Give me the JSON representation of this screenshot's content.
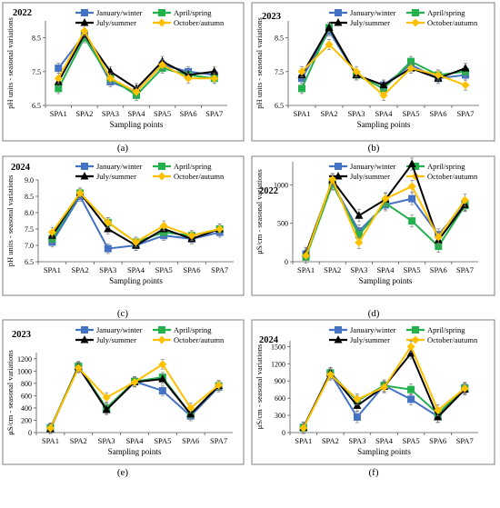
{
  "figure": {
    "x_label": "Sampling points",
    "legend": [
      "January/winter",
      "April/spring",
      "July/summer",
      "October/autumn"
    ]
  },
  "colors": {
    "January/winter": "#4472c4",
    "April/spring": "#22b14c",
    "July/summer": "#000000",
    "October/autumn": "#ffc000"
  },
  "panel_labels": [
    "(a)",
    "(b)",
    "(c)",
    "(d)",
    "(e)",
    "(f)"
  ],
  "chart_data": [
    {
      "type": "line",
      "year": "2022",
      "panel": "(a)",
      "ylabel": "pH units - seasonal variations",
      "xlabel": "Sampling points",
      "categories": [
        "SPA1",
        "SPA2",
        "SPA3",
        "SPA4",
        "SPA5",
        "SPA6",
        "SPA7"
      ],
      "ylim": [
        6.5,
        9.0
      ],
      "yticks": [
        "6.5",
        "7.5",
        "8.5"
      ],
      "yticks_values": [
        6.5,
        7.5,
        8.5
      ],
      "series": [
        {
          "name": "January/winter",
          "marker": "square",
          "values": [
            7.6,
            8.6,
            7.2,
            6.9,
            7.7,
            7.5,
            7.4
          ]
        },
        {
          "name": "April/spring",
          "marker": "square",
          "values": [
            7.0,
            8.5,
            7.3,
            6.8,
            7.6,
            7.4,
            7.3
          ]
        },
        {
          "name": "July/summer",
          "marker": "triangle",
          "values": [
            7.2,
            8.6,
            7.5,
            7.0,
            7.8,
            7.4,
            7.5
          ]
        },
        {
          "name": "October/autumn",
          "marker": "diamond",
          "values": [
            7.3,
            8.7,
            7.3,
            6.9,
            7.7,
            7.3,
            7.3
          ]
        }
      ]
    },
    {
      "type": "line",
      "year": "2023",
      "panel": "(b)",
      "ylabel": "pH units - seasonal variations",
      "xlabel": "Sampling points",
      "categories": [
        "SPA1",
        "SPA2",
        "SPA3",
        "SPA4",
        "SPA5",
        "SPA6",
        "SPA7"
      ],
      "ylim": [
        6.5,
        9.0
      ],
      "yticks": [
        "6.5",
        "7.5",
        "8.5"
      ],
      "yticks_values": [
        6.5,
        7.5,
        8.5
      ],
      "series": [
        {
          "name": "January/winter",
          "marker": "square",
          "values": [
            7.3,
            8.7,
            7.4,
            7.1,
            7.7,
            7.3,
            7.4
          ]
        },
        {
          "name": "April/spring",
          "marker": "square",
          "values": [
            7.0,
            8.8,
            7.4,
            7.0,
            7.8,
            7.4,
            7.5
          ]
        },
        {
          "name": "July/summer",
          "marker": "triangle",
          "values": [
            7.4,
            8.8,
            7.4,
            7.1,
            7.6,
            7.3,
            7.6
          ]
        },
        {
          "name": "October/autumn",
          "marker": "diamond",
          "values": [
            7.5,
            8.3,
            7.5,
            6.8,
            7.6,
            7.4,
            7.1
          ]
        }
      ]
    },
    {
      "type": "line",
      "year": "2024",
      "panel": "(c)",
      "ylabel": "pH units - seasonal variations",
      "xlabel": "Sampling points",
      "categories": [
        "SPA1",
        "SPA2",
        "SPA3",
        "SPA4",
        "SPA5",
        "SPA6",
        "SPA7"
      ],
      "ylim": [
        6.5,
        9.0
      ],
      "yticks": [
        "6.5",
        "7.0",
        "7.5",
        "8.0",
        "8.5",
        "9.0"
      ],
      "yticks_values": [
        6.5,
        7.0,
        7.5,
        8.0,
        8.5,
        9.0
      ],
      "series": [
        {
          "name": "January/winter",
          "marker": "square",
          "values": [
            7.1,
            8.5,
            6.9,
            7.0,
            7.3,
            7.2,
            7.4
          ]
        },
        {
          "name": "April/spring",
          "marker": "square",
          "values": [
            7.2,
            8.6,
            7.7,
            7.1,
            7.4,
            7.3,
            7.5
          ]
        },
        {
          "name": "July/summer",
          "marker": "triangle",
          "values": [
            7.3,
            8.6,
            7.5,
            7.0,
            7.5,
            7.2,
            7.5
          ]
        },
        {
          "name": "October/autumn",
          "marker": "diamond",
          "values": [
            7.4,
            8.6,
            7.7,
            7.1,
            7.6,
            7.3,
            7.5
          ]
        }
      ]
    },
    {
      "type": "line",
      "year": "2022",
      "panel": "(d)",
      "ylabel": "μS/cm - seasonal variations",
      "xlabel": "Sampling points",
      "categories": [
        "SPA1",
        "SPA2",
        "SPA3",
        "SPA4",
        "SPA5",
        "SPA6",
        "SPA7"
      ],
      "ylim": [
        0,
        1300
      ],
      "yticks": [
        "0",
        "500",
        "1000"
      ],
      "yticks_values": [
        0,
        500,
        1000
      ],
      "series": [
        {
          "name": "January/winter",
          "marker": "square",
          "values": [
            100,
            1020,
            400,
            740,
            820,
            350,
            750
          ]
        },
        {
          "name": "April/spring",
          "marker": "square",
          "values": [
            60,
            1010,
            350,
            760,
            530,
            200,
            730
          ]
        },
        {
          "name": "July/summer",
          "marker": "triangle",
          "values": [
            110,
            1060,
            600,
            810,
            1270,
            280,
            740
          ]
        },
        {
          "name": "October/autumn",
          "marker": "diamond",
          "values": [
            80,
            1070,
            250,
            820,
            980,
            320,
            800
          ]
        }
      ]
    },
    {
      "type": "line",
      "year": "2023",
      "panel": "(e)",
      "ylabel": "μS/cm - seasonal variations",
      "xlabel": "Sampling points",
      "categories": [
        "SPA1",
        "SPA2",
        "SPA3",
        "SPA4",
        "SPA5",
        "SPA6",
        "SPA7"
      ],
      "ylim": [
        0,
        1300
      ],
      "yticks": [
        "0",
        "200",
        "400",
        "600",
        "800",
        "1000",
        "1200"
      ],
      "yticks_values": [
        0,
        200,
        400,
        600,
        800,
        1000,
        1200
      ],
      "series": [
        {
          "name": "January/winter",
          "marker": "square",
          "values": [
            80,
            1060,
            380,
            830,
            680,
            270,
            740
          ]
        },
        {
          "name": "April/spring",
          "marker": "square",
          "values": [
            70,
            1080,
            400,
            830,
            900,
            300,
            760
          ]
        },
        {
          "name": "July/summer",
          "marker": "triangle",
          "values": [
            60,
            1070,
            370,
            820,
            870,
            300,
            760
          ]
        },
        {
          "name": "October/autumn",
          "marker": "diamond",
          "values": [
            70,
            1050,
            570,
            820,
            1110,
            400,
            770
          ]
        }
      ]
    },
    {
      "type": "line",
      "year": "2024",
      "panel": "(f)",
      "ylabel": "μS/cm - seasonal variations",
      "xlabel": "Sampling points",
      "categories": [
        "SPA1",
        "SPA2",
        "SPA3",
        "SPA4",
        "SPA5",
        "SPA6",
        "SPA7"
      ],
      "ylim": [
        0,
        1600
      ],
      "yticks": [
        "0",
        "300",
        "600",
        "900",
        "1200",
        "1500"
      ],
      "yticks_values": [
        0,
        300,
        600,
        900,
        1200,
        1500
      ],
      "series": [
        {
          "name": "January/winter",
          "marker": "square",
          "values": [
            90,
            1030,
            270,
            820,
            580,
            280,
            780
          ]
        },
        {
          "name": "April/spring",
          "marker": "square",
          "values": [
            80,
            1040,
            550,
            820,
            750,
            330,
            770
          ]
        },
        {
          "name": "July/summer",
          "marker": "triangle",
          "values": [
            90,
            1040,
            470,
            800,
            1380,
            270,
            750
          ]
        },
        {
          "name": "October/autumn",
          "marker": "diamond",
          "values": [
            80,
            1010,
            580,
            790,
            1500,
            390,
            770
          ]
        }
      ]
    }
  ]
}
